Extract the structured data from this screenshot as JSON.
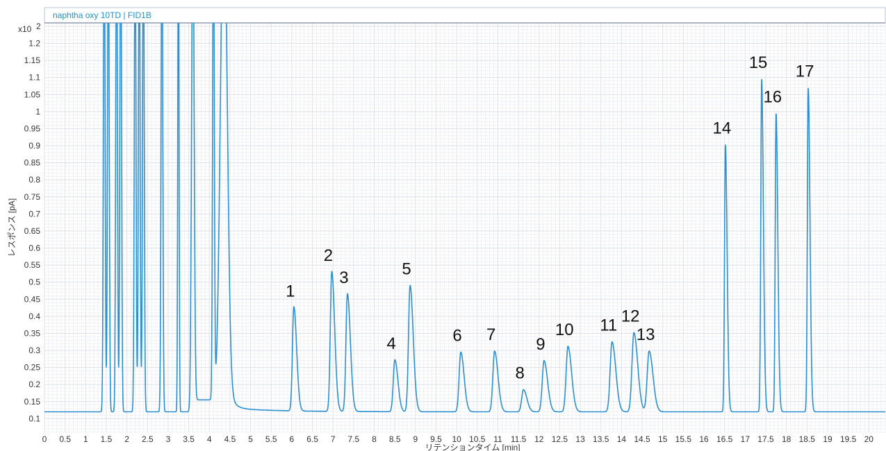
{
  "window": {
    "title": "naphtha oxy 10TD | FID1B"
  },
  "chart_data": {
    "type": "line",
    "title": "naphtha oxy 10TD | FID1B",
    "xlabel": "リテンションタイム [min]",
    "ylabel": "レスポンス [pA]",
    "y_multiplier_label": "x10",
    "y_multiplier_exp": "2",
    "xlim": [
      0,
      20.4
    ],
    "ylim": [
      0.06,
      1.26
    ],
    "grid": true,
    "line_color": "#2b8fd0",
    "x_ticks": [
      0,
      0.5,
      1,
      1.5,
      2,
      2.5,
      3,
      3.5,
      4,
      4.5,
      5,
      5.5,
      6,
      6.5,
      7,
      7.5,
      8,
      8.5,
      9,
      9.5,
      10,
      10.5,
      11,
      11.5,
      12,
      12.5,
      13,
      13.5,
      14,
      14.5,
      15,
      15.5,
      16,
      16.5,
      17,
      17.5,
      18,
      18.5,
      19,
      19.5,
      20
    ],
    "x_tick_labels": [
      "0",
      "0.5",
      "1",
      "1.5",
      "2",
      "2.5",
      "3",
      "3.5",
      "4",
      "4.5",
      "5",
      "5.5",
      "6",
      "6.5",
      "7",
      "7.5",
      "8",
      "8.5",
      "9",
      "9.5",
      "10",
      "10.5",
      "11",
      "11.5",
      "12",
      "12.5",
      "13",
      "13.5",
      "14",
      "14.5",
      "15",
      "15.5",
      "16",
      "16.5",
      "17",
      "17.5",
      "18",
      "18.5",
      "19",
      "19.5",
      "20"
    ],
    "y_ticks": [
      0.1,
      0.15,
      0.2,
      0.25,
      0.3,
      0.35,
      0.4,
      0.45,
      0.5,
      0.55,
      0.6,
      0.65,
      0.7,
      0.75,
      0.8,
      0.85,
      0.9,
      0.95,
      1,
      1.05,
      1.1,
      1.15,
      1.2
    ],
    "y_tick_labels": [
      "0.1",
      "0.15",
      "0.2",
      "0.25",
      "0.3",
      "0.35",
      "0.4",
      "0.45",
      "0.5",
      "0.55",
      "0.6",
      "0.65",
      "0.7",
      "0.75",
      "0.8",
      "0.85",
      "0.9",
      "0.95",
      "1",
      "1.05",
      "1.1",
      "1.15",
      "1.2"
    ],
    "baseline": 0.12,
    "solvent_peaks": [
      {
        "rt": 1.45,
        "height": 1.6,
        "width": 0.02
      },
      {
        "rt": 1.55,
        "height": 1.6,
        "width": 0.02
      },
      {
        "rt": 1.75,
        "height": 1.6,
        "width": 0.02
      },
      {
        "rt": 1.85,
        "height": 1.6,
        "width": 0.02
      },
      {
        "rt": 2.2,
        "height": 1.6,
        "width": 0.02
      },
      {
        "rt": 2.3,
        "height": 1.6,
        "width": 0.02
      },
      {
        "rt": 2.4,
        "height": 1.6,
        "width": 0.02
      },
      {
        "rt": 2.85,
        "height": 1.6,
        "width": 0.02
      },
      {
        "rt": 3.25,
        "height": 1.6,
        "width": 0.015
      },
      {
        "rt": 3.6,
        "height": 1.6,
        "width": 0.03
      },
      {
        "rt": 4.1,
        "height": 1.6,
        "width": 0.02
      },
      {
        "rt": 4.35,
        "height": 1.6,
        "width": 0.08
      }
    ],
    "peaks": [
      {
        "label": "1",
        "rt": 6.05,
        "height": 0.425
      },
      {
        "label": "2",
        "rt": 6.97,
        "height": 0.53
      },
      {
        "label": "3",
        "rt": 7.35,
        "height": 0.465
      },
      {
        "label": "4",
        "rt": 8.5,
        "height": 0.272
      },
      {
        "label": "5",
        "rt": 8.87,
        "height": 0.49
      },
      {
        "label": "6",
        "rt": 10.1,
        "height": 0.295
      },
      {
        "label": "7",
        "rt": 10.92,
        "height": 0.298
      },
      {
        "label": "8",
        "rt": 11.62,
        "height": 0.185
      },
      {
        "label": "9",
        "rt": 12.12,
        "height": 0.27
      },
      {
        "label": "10",
        "rt": 12.7,
        "height": 0.312
      },
      {
        "label": "11",
        "rt": 13.77,
        "height": 0.325
      },
      {
        "label": "12",
        "rt": 14.3,
        "height": 0.352
      },
      {
        "label": "13",
        "rt": 14.67,
        "height": 0.298
      },
      {
        "label": "14",
        "rt": 16.52,
        "height": 0.903
      },
      {
        "label": "15",
        "rt": 17.4,
        "height": 1.095
      },
      {
        "label": "16",
        "rt": 17.75,
        "height": 0.995
      },
      {
        "label": "17",
        "rt": 18.53,
        "height": 1.07
      }
    ]
  }
}
